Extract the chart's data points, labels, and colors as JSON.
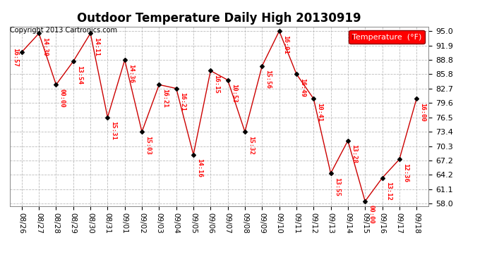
{
  "title": "Outdoor Temperature Daily High 20130919",
  "copyright": "Copyright 2013 Cartronics.com",
  "legend_label": "Temperature  (°F)",
  "dates": [
    "08/26",
    "08/27",
    "08/28",
    "08/29",
    "08/30",
    "08/31",
    "09/01",
    "09/02",
    "09/03",
    "09/04",
    "09/05",
    "09/06",
    "09/07",
    "09/08",
    "09/09",
    "09/10",
    "09/11",
    "09/12",
    "09/13",
    "09/14",
    "09/15",
    "09/16",
    "09/17",
    "09/18"
  ],
  "temps": [
    90.5,
    94.5,
    83.5,
    88.5,
    94.5,
    76.5,
    88.8,
    73.4,
    83.5,
    82.7,
    68.5,
    86.5,
    84.5,
    73.4,
    87.5,
    95.0,
    85.8,
    80.5,
    64.5,
    71.5,
    58.5,
    63.5,
    67.5,
    80.5
  ],
  "time_labels": [
    "16:57",
    "14:30",
    "00:00",
    "13:54",
    "14:11",
    "15:31",
    "14:36",
    "15:03",
    "16:21",
    "16:21",
    "14:16",
    "16:15",
    "10:53",
    "15:32",
    "15:56",
    "16:01",
    "16:49",
    "10:41",
    "13:55",
    "13:28",
    "00:00",
    "13:12",
    "12:36",
    "16:00"
  ],
  "yticks": [
    58.0,
    61.1,
    64.2,
    67.2,
    70.3,
    73.4,
    76.5,
    79.6,
    82.7,
    85.8,
    88.8,
    91.9,
    95.0
  ],
  "ylim": [
    57.5,
    96.0
  ],
  "line_color": "#cc0000",
  "marker_color": "#000000",
  "bg_color": "#ffffff",
  "grid_color": "#bbbbbb",
  "title_fontsize": 12,
  "tick_fontsize": 8,
  "annot_fontsize": 6.5,
  "copyright_fontsize": 7
}
